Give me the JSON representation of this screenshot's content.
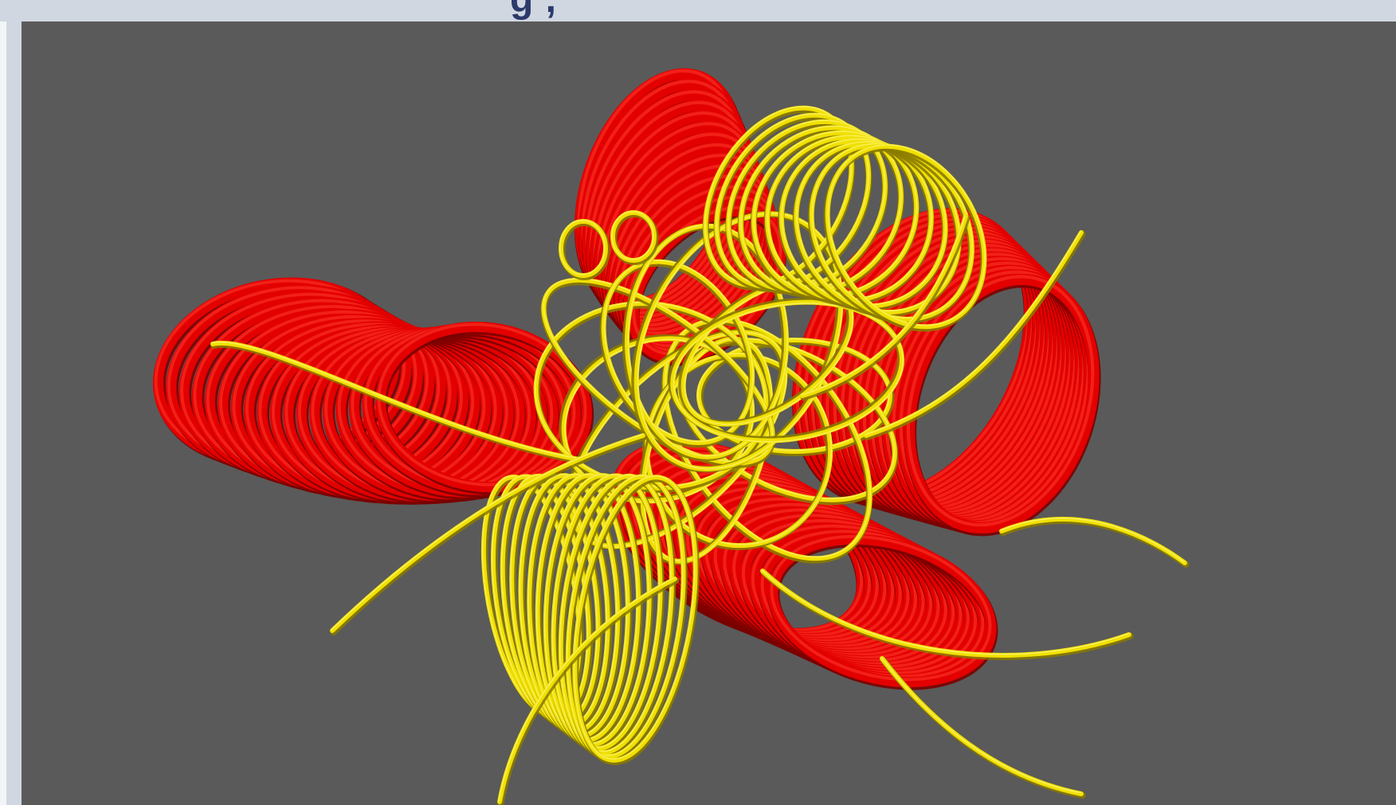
{
  "header": {
    "title_fragment": "g   ,"
  },
  "viewport": {
    "background_color": "#5a5a5a",
    "description_icon": "3d-tube-render"
  },
  "colors": {
    "red_tube": "#e30000",
    "red_highlight": "#ff3b2b",
    "red_shadow": "#7a0000",
    "yellow_tube": "#f0e000",
    "yellow_highlight": "#fff88a",
    "yellow_shadow": "#8a7a00"
  }
}
